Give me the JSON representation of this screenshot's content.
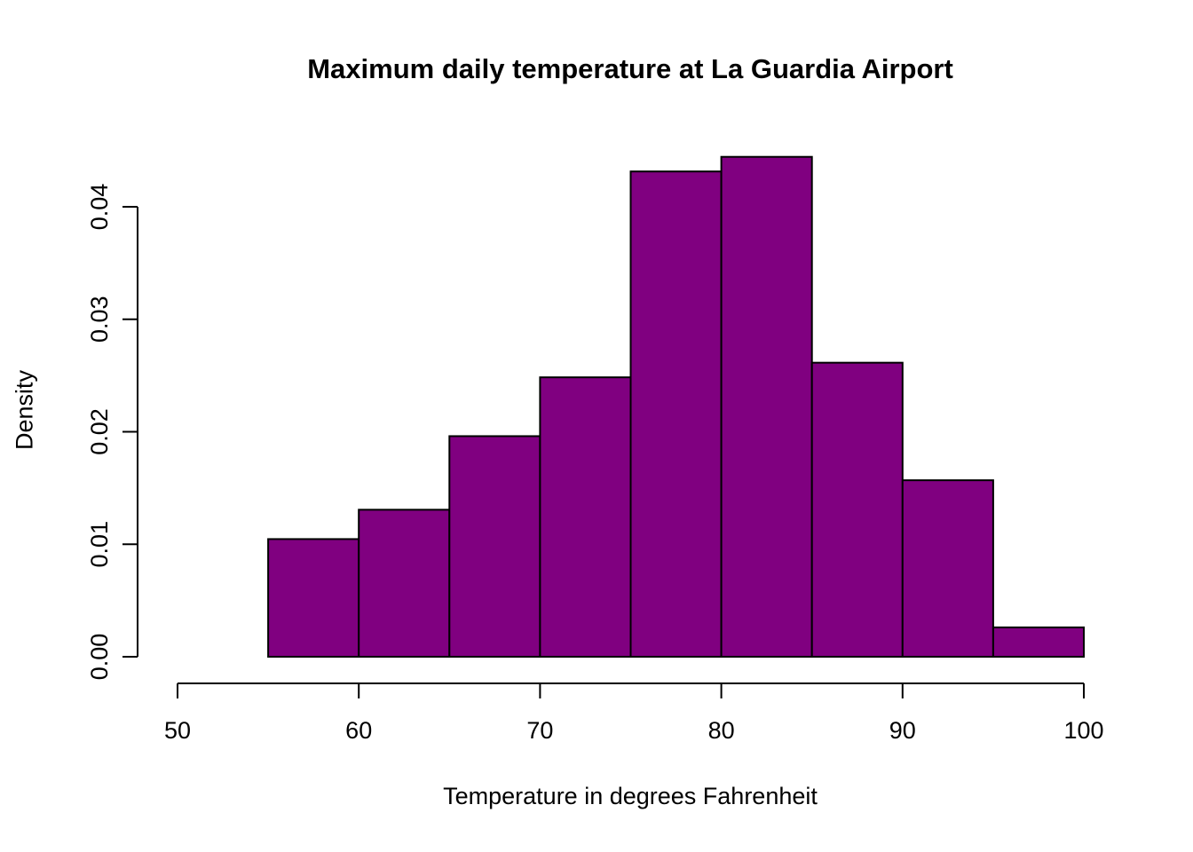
{
  "chart_data": {
    "type": "bar",
    "subtype": "histogram",
    "title": "Maximum daily temperature at La Guardia Airport",
    "xlabel": "Temperature in degrees Fahrenheit",
    "ylabel": "Density",
    "bin_breaks": [
      55,
      60,
      65,
      70,
      75,
      80,
      85,
      90,
      95,
      100
    ],
    "densities": [
      0.01046,
      0.01307,
      0.01961,
      0.02484,
      0.04314,
      0.04444,
      0.02614,
      0.01569,
      0.00261
    ],
    "x_ticks": [
      50,
      60,
      70,
      80,
      90,
      100
    ],
    "y_ticks": [
      0,
      0.01,
      0.02,
      0.03,
      0.04
    ],
    "y_tick_labels": [
      "0.00",
      "0.01",
      "0.02",
      "0.03",
      "0.04"
    ],
    "xlim": [
      50,
      100
    ],
    "ylim": [
      0,
      0.04
    ],
    "grid": false,
    "legend": "none",
    "bar_fill": "#800080",
    "bar_border": "#000000",
    "axis_color": "#000000",
    "background": "#ffffff"
  }
}
